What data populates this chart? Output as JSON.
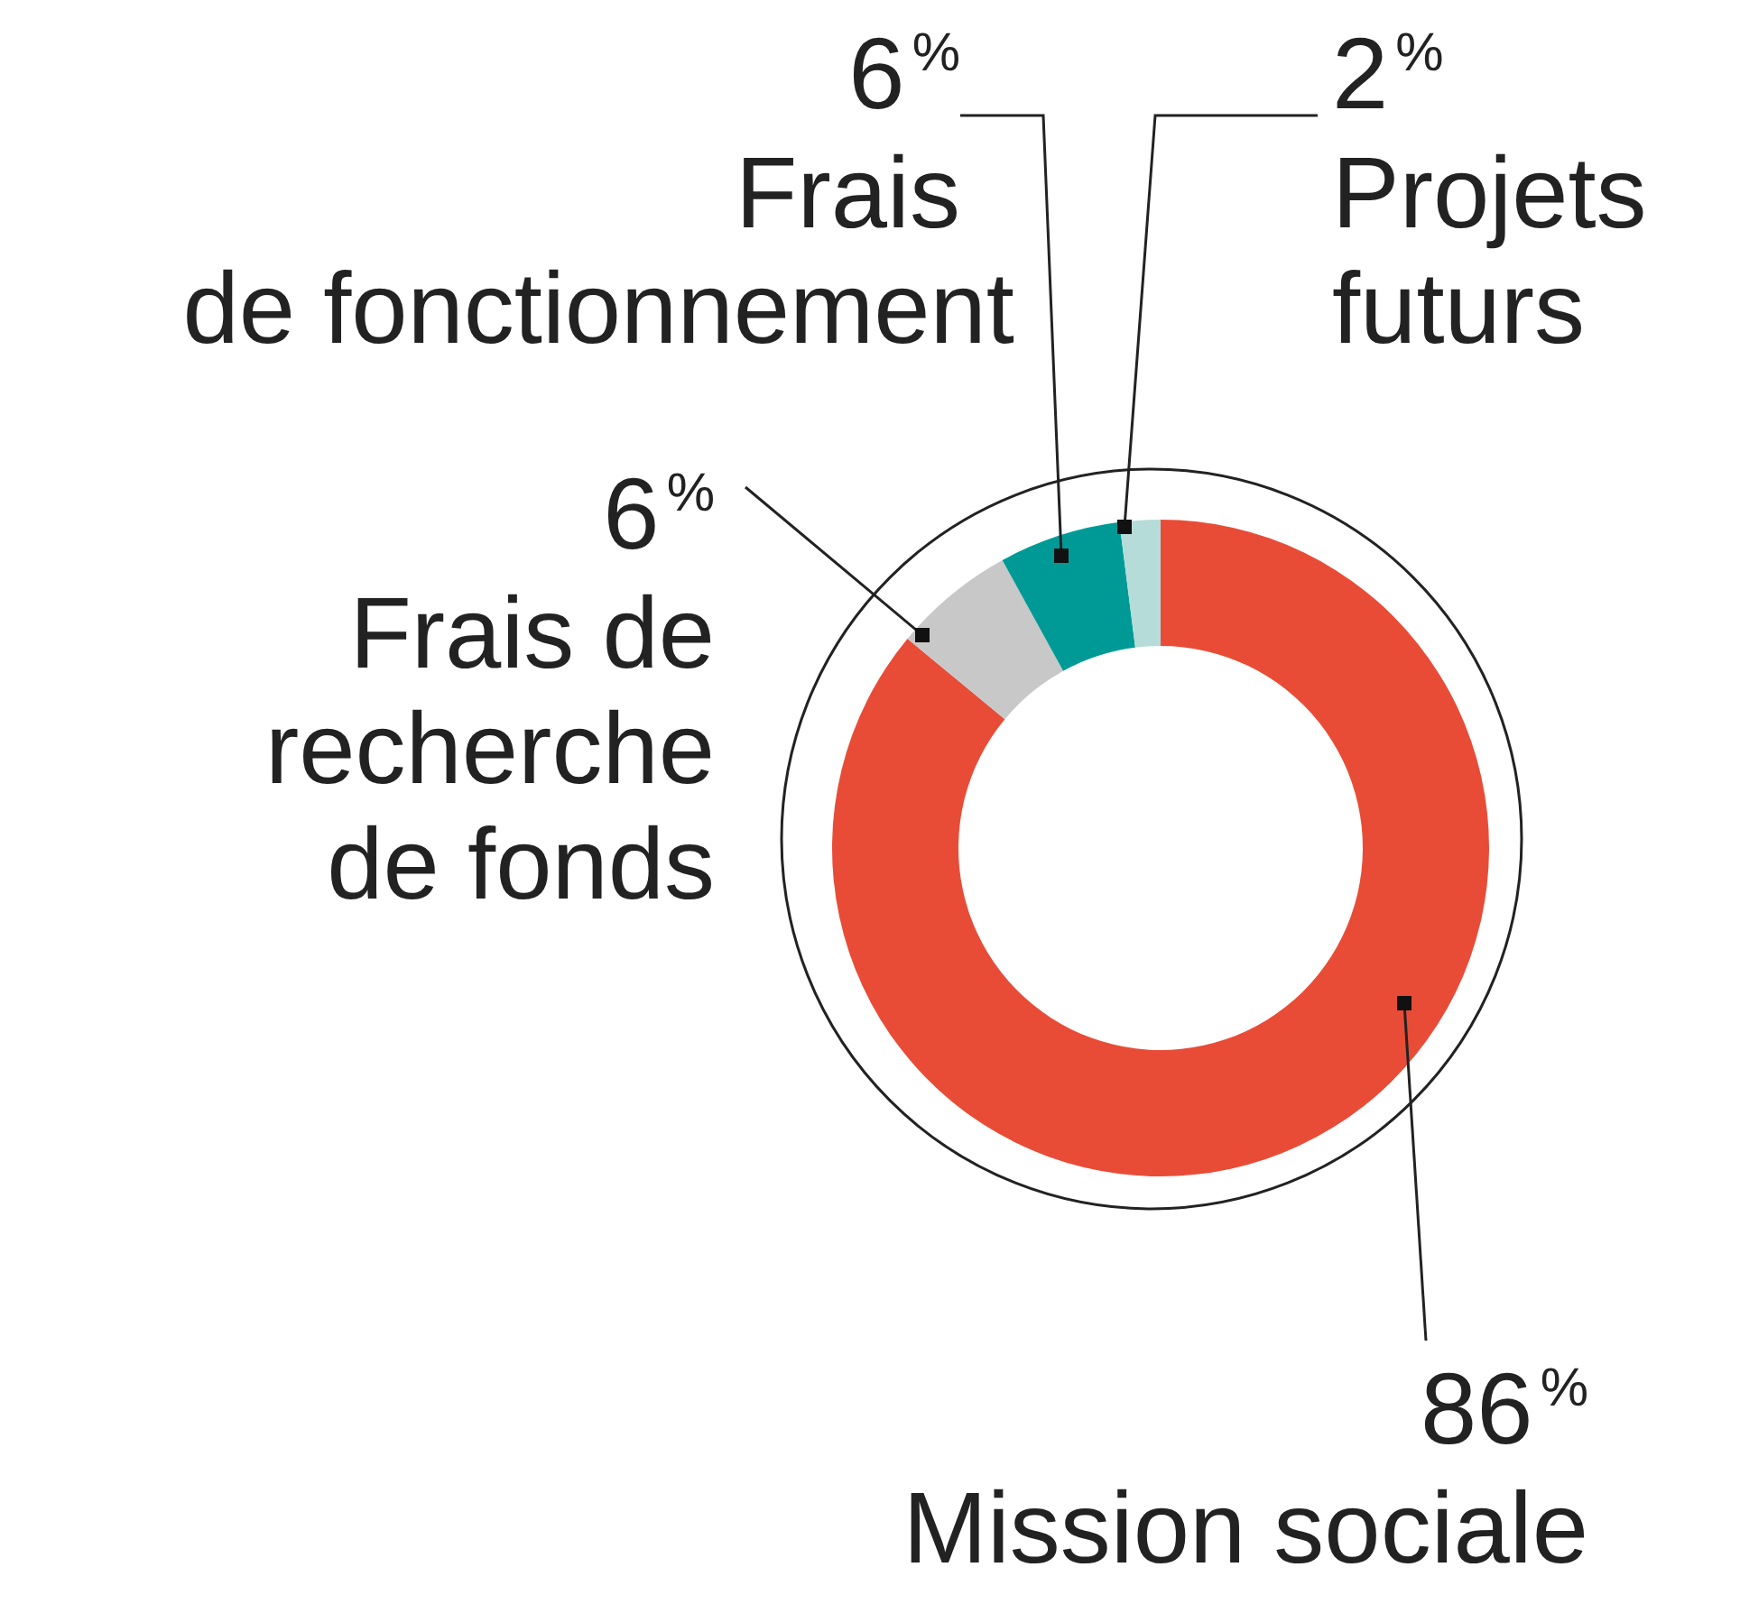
{
  "chart_data": {
    "type": "donut",
    "categories": [
      "Mission sociale",
      "Frais de recherche de fonds",
      "Frais de fonctionnement",
      "Projets futurs"
    ],
    "values": [
      86,
      6,
      6,
      2
    ],
    "colors": [
      "#e84c36",
      "#c8c8c8",
      "#009a96",
      "#b5dcd8"
    ],
    "value_labels": [
      "86$^{%}$",
      "6$^{%}$",
      "6$^{%}$",
      "2$^{%}$"
    ],
    "legend": false
  }
}
